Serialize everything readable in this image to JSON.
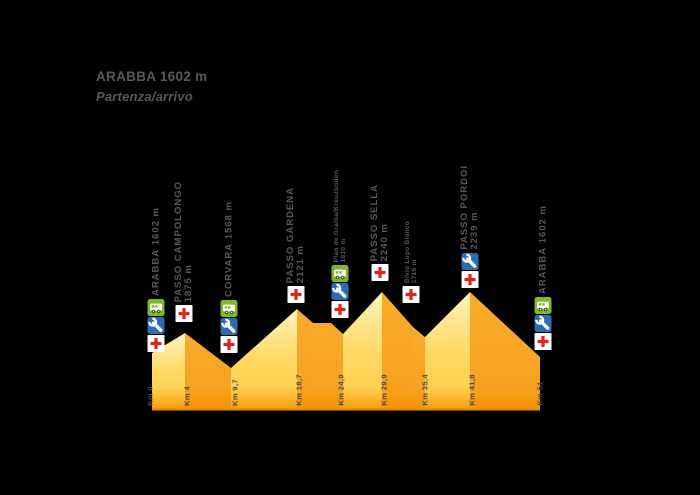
{
  "title": {
    "line1": "ARABBA 1602 m",
    "line2": "Partenza/arrivo"
  },
  "colors": {
    "background": "#000000",
    "label_text": "#58585A",
    "km_text": "#4A4A4C",
    "refreshment_green": "#7DB928",
    "refreshment_wheel": "#39560F",
    "mechanic_blue": "#2C6CB3",
    "first_aid_red": "#E2231A",
    "icon_white": "#FFFFFF",
    "slope_light_top": "#FFF2BE",
    "slope_light_mid": "#FFD964",
    "slope_light_bottom": "#FEC843",
    "slope_dark_top": "#F8AB2A",
    "slope_dark_bottom": "#F5A01E",
    "base_glow": "#F39000",
    "base_line": "#EC8D05"
  },
  "services_legend": {
    "refreshment": "refreshment-van-icon",
    "mechanical-assistance": "wrench-icon",
    "first-aid": "red-cross-icon"
  },
  "stations": [
    {
      "name": "ARABBA",
      "elevation": "1602 m",
      "km_label": "Km 0",
      "services": [
        "refreshment",
        "mechanical-assistance",
        "first-aid"
      ],
      "style": "inline"
    },
    {
      "name": "PASSO CAMPOLONGO",
      "elevation": "1875 m",
      "km_label": "Km 4",
      "services": [
        "first-aid"
      ],
      "style": "two-line"
    },
    {
      "name": "CORVARA",
      "elevation": "1568 m",
      "km_label": "Km 9,7",
      "services": [
        "refreshment",
        "mechanical-assistance",
        "first-aid"
      ],
      "style": "inline"
    },
    {
      "name": "PASSO GARDENA",
      "elevation": "2121 m",
      "km_label": "Km 18,7",
      "services": [
        "first-aid"
      ],
      "style": "two-line"
    },
    {
      "name": "Plan de Gralba/Kreuzboden",
      "elevation": "1810 m",
      "km_label": "Km 24,9",
      "services": [
        "refreshment",
        "mechanical-assistance",
        "first-aid"
      ],
      "style": "two-line-small"
    },
    {
      "name": "PASSO SELLA",
      "elevation": "2240 m",
      "km_label": "Km 29,9",
      "services": [
        "first-aid"
      ],
      "style": "two-line"
    },
    {
      "name": "Bivio Lupo Bianco",
      "elevation": "1715 m",
      "km_label": "Km 35,4",
      "services": [
        "first-aid"
      ],
      "style": "two-line-small"
    },
    {
      "name": "PASSO PORDOI",
      "elevation": "2239 m",
      "km_label": "Km 41,8",
      "services": [
        "mechanical-assistance",
        "first-aid"
      ],
      "style": "two-line"
    },
    {
      "name": "ARABBA",
      "elevation": "1602 m",
      "km_label": "Km 51",
      "services": [
        "refreshment",
        "mechanical-assistance",
        "first-aid"
      ],
      "style": "inline"
    }
  ],
  "chart_data": {
    "type": "area",
    "title": "ARABBA 1602 m — Partenza/arrivo",
    "x_unit": "km",
    "y_unit": "m",
    "x": [
      0,
      4,
      9.7,
      18.7,
      24.9,
      29.9,
      35.4,
      41.8,
      51
    ],
    "y": [
      1602,
      1875,
      1568,
      2121,
      1810,
      2240,
      1715,
      2239,
      1602
    ],
    "point_labels": [
      "Arabba",
      "Passo Campolongo",
      "Corvara",
      "Passo Gardena",
      "Plan de Gralba/Kreuzboden",
      "Passo Sella",
      "Bivio Lupo Bianco",
      "Passo Pordoi",
      "Arabba"
    ],
    "tick_labels": [
      "Km 0",
      "Km 4",
      "Km 9,7",
      "Km 18,7",
      "Km 24,9",
      "Km 29,9",
      "Km 35,4",
      "Km 41,8",
      "Km 51"
    ],
    "xlim": [
      0,
      51
    ],
    "grid": false,
    "legend": false
  }
}
